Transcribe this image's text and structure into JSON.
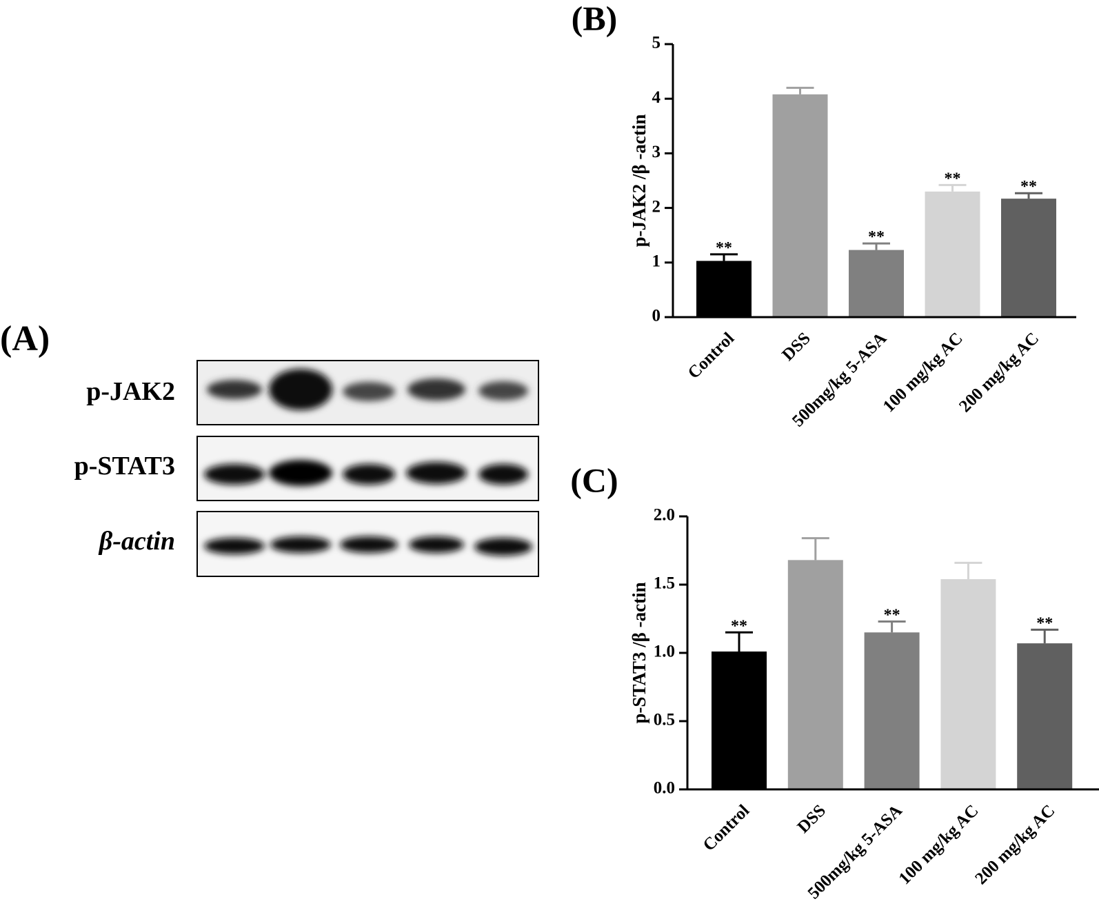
{
  "blot": {
    "panel_label": "(A)",
    "rows": [
      "p-JAK2",
      "p-STAT3",
      "β-actin"
    ]
  },
  "chart_data": [
    {
      "type": "bar",
      "title": "(B)",
      "y_label": "p-JAK2 /β -actin",
      "categories": [
        "Control",
        "DSS",
        "500mg/kg 5-ASA",
        "100 mg/kg AC",
        "200 mg/kg AC"
      ],
      "values": [
        1.03,
        4.08,
        1.23,
        2.3,
        2.17
      ],
      "errors": [
        0.12,
        0.12,
        0.12,
        0.12,
        0.1
      ],
      "annotations": [
        "**",
        null,
        "**",
        "**",
        "**"
      ],
      "colors": [
        "#000000",
        "#a0a0a0",
        "#808080",
        "#d4d4d4",
        "#606060"
      ],
      "ylim": [
        0,
        5
      ],
      "yticks": [
        0,
        1,
        2,
        3,
        4,
        5
      ]
    },
    {
      "type": "bar",
      "title": "(C)",
      "y_label": "p-STAT3 /β -actin",
      "categories": [
        "Control",
        "DSS",
        "500mg/kg 5-ASA",
        "100 mg/kg AC",
        "200 mg/kg AC"
      ],
      "values": [
        1.01,
        1.68,
        1.15,
        1.54,
        1.07
      ],
      "errors": [
        0.14,
        0.16,
        0.08,
        0.12,
        0.1
      ],
      "annotations": [
        "**",
        null,
        "**",
        null,
        "**"
      ],
      "colors": [
        "#000000",
        "#a0a0a0",
        "#808080",
        "#d4d4d4",
        "#606060"
      ],
      "ylim": [
        0,
        2
      ],
      "yticks": [
        {
          "value": 0,
          "label": "0.0"
        },
        0.5,
        {
          "value": 1,
          "label": "1.0"
        },
        1.5,
        {
          "value": 2,
          "label": "2.0"
        }
      ]
    }
  ]
}
